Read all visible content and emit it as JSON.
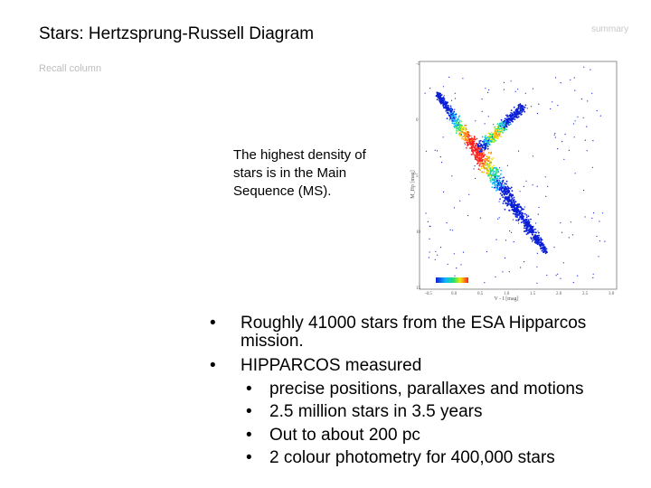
{
  "header": {
    "title": "Stars: Hertzsprung-Russell Diagram",
    "summary_tag": "summary"
  },
  "subheader": {
    "recall": "Recall column"
  },
  "callout": {
    "text": "The highest density of stars is in the Main Sequence (MS)."
  },
  "bullets": [
    {
      "text": "Roughly 41000 stars from the ESA Hipparcos mission."
    },
    {
      "text": "HIPPARCOS measured",
      "children": [
        " precise positions, parallaxes and motions",
        "2.5 million stars in 3.5 years",
        "Out to about 200 pc",
        "2 colour photometry for 400,000 stars"
      ]
    }
  ],
  "bullet_glyph": "•",
  "hr_diagram": {
    "y_axis_label": "M_Hp [mag]",
    "x_axis_label": "V - I [mag]",
    "x_ticks": [
      "-0.5",
      "0.0",
      "0.5",
      "1.0",
      "1.5",
      "2.0",
      "2.5",
      "3.0"
    ],
    "y_ticks": [
      "-5",
      "0",
      "5",
      "10",
      "15"
    ],
    "density_colors": [
      "#0b1fd6",
      "#0fb7ff",
      "#21e06a",
      "#f2e80c",
      "#ff8c1a",
      "#ff1d1d"
    ]
  }
}
